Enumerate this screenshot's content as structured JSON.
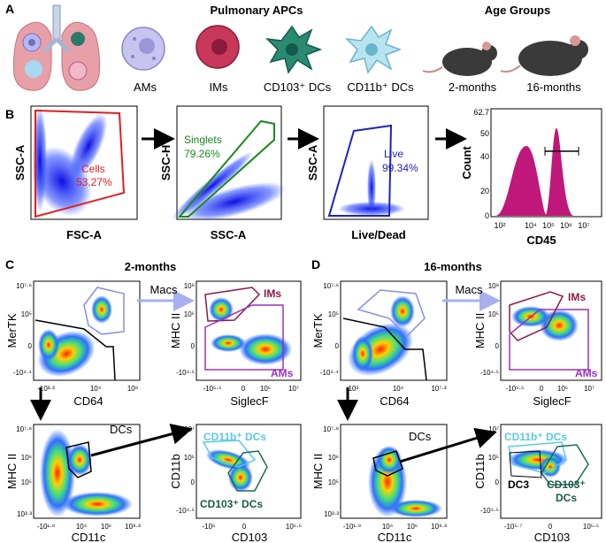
{
  "panels": {
    "A": "A",
    "B": "B",
    "C": "C",
    "D": "D"
  },
  "panelA": {
    "pulmonary_title": "Pulmonary APCs",
    "age_title": "Age Groups",
    "cells": [
      "AMs",
      "IMs",
      "CD103⁺ DCs",
      "CD11b⁺ DCs"
    ],
    "ages": [
      "2-months",
      "16-months"
    ]
  },
  "panelB": {
    "plot1": {
      "xlabel": "FSC-A",
      "ylabel": "SSC-A",
      "gate_name": "Cells",
      "gate_pct": "53.27%"
    },
    "plot2": {
      "xlabel": "SSC-A",
      "ylabel": "SSC-H",
      "gate_name": "Singlets",
      "gate_pct": "79.26%"
    },
    "plot3": {
      "xlabel": "Live/Dead",
      "ylabel": "SSC-A",
      "gate_name": "Live",
      "gate_pct": "99.34%"
    },
    "hist": {
      "xlabel": "CD45",
      "ylabel": "Count",
      "xticks": [
        "10²",
        "10⁴",
        "10⁵",
        "10⁶",
        "10⁷"
      ],
      "yticks": [
        "0",
        "20",
        "40",
        "50",
        "62.7"
      ]
    }
  },
  "panelC": {
    "title": "2-months",
    "macs_label": "Macs",
    "dcs_label": "DCs",
    "p1": {
      "xlabel": "CD64",
      "ylabel": "MerTK",
      "xticks": [
        "-10³·³",
        "10⁴",
        "10⁸"
      ],
      "yticks": [
        "10⁷·⁶",
        "10⁵",
        "0",
        "-10⁴·⁴"
      ]
    },
    "p2": {
      "xlabel": "SiglecF",
      "ylabel": "MHC II",
      "xticks": [
        "-10⁵·⁵",
        "0",
        "10⁵",
        "10⁷"
      ],
      "yticks": [
        "10⁸",
        "10⁵",
        "0",
        "-10⁴·⁵"
      ],
      "gate1": "IMs",
      "gate2": "AMs"
    },
    "p3": {
      "xlabel": "CD11c",
      "ylabel": "MHC II",
      "xticks": [
        "-10¹·⁹",
        "10⁴",
        "10⁶",
        "10⁹·³"
      ],
      "yticks": [
        "10⁷·⁸",
        "10⁶",
        "10⁵",
        "10³·³"
      ]
    },
    "p4": {
      "xlabel": "CD103",
      "ylabel": "CD11b",
      "xticks": [
        "-10⁵",
        "0",
        "10⁵·⁵"
      ],
      "yticks": [
        "10⁷",
        "10⁵",
        "0",
        "-10⁴·⁵"
      ],
      "gate1": "CD11b⁺ DCs",
      "gate2": "CD103⁺ DCs"
    }
  },
  "panelD": {
    "title": "16-months",
    "macs_label": "Macs",
    "dcs_label": "DCs",
    "p1": {
      "xlabel": "CD64",
      "ylabel": "MerTK",
      "xticks": [
        "-10³",
        "10⁴",
        "10⁷·³"
      ],
      "yticks": [
        "10⁷·⁶",
        "10⁵",
        "0",
        "-10⁴·⁴"
      ]
    },
    "p2": {
      "xlabel": "SiglecF",
      "ylabel": "MHC II",
      "xticks": [
        "-10⁵·⁵",
        "0",
        "10⁵",
        "10⁷"
      ],
      "yticks": [
        "10⁸",
        "10⁵",
        "0",
        "-10⁴·⁵"
      ],
      "gate1": "IMs",
      "gate2": "AMs"
    },
    "p3": {
      "xlabel": "CD11c",
      "ylabel": "MHC II",
      "xticks": [
        "-10¹·⁹",
        "10⁴",
        "10⁶",
        "10⁹·³"
      ],
      "yticks": [
        "10⁷·⁸",
        "10⁶",
        "10⁵",
        "10³·³"
      ]
    },
    "p4": {
      "xlabel": "CD103",
      "ylabel": "CD11b",
      "xticks": [
        "-10⁵·⁷",
        "0",
        "10⁵·⁵"
      ],
      "yticks": [
        "10⁷",
        "10⁵",
        "0",
        "-10⁴·⁵"
      ],
      "gate1": "CD11b⁺ DCs",
      "gate2": "CD103⁺",
      "gate2b": "DCs",
      "gate3": "DC3"
    }
  },
  "colors": {
    "cells_gate": "#e02020",
    "singlets_gate": "#1a8a1a",
    "live_gate": "#2020c0",
    "hist_fill": "#c0187a",
    "ims": "#8a1a4a",
    "ams": "#9a30c0",
    "cd11b": "#5ac8e8",
    "cd103": "#1a5a4a",
    "macs_arrow": "#a8b0f0"
  }
}
